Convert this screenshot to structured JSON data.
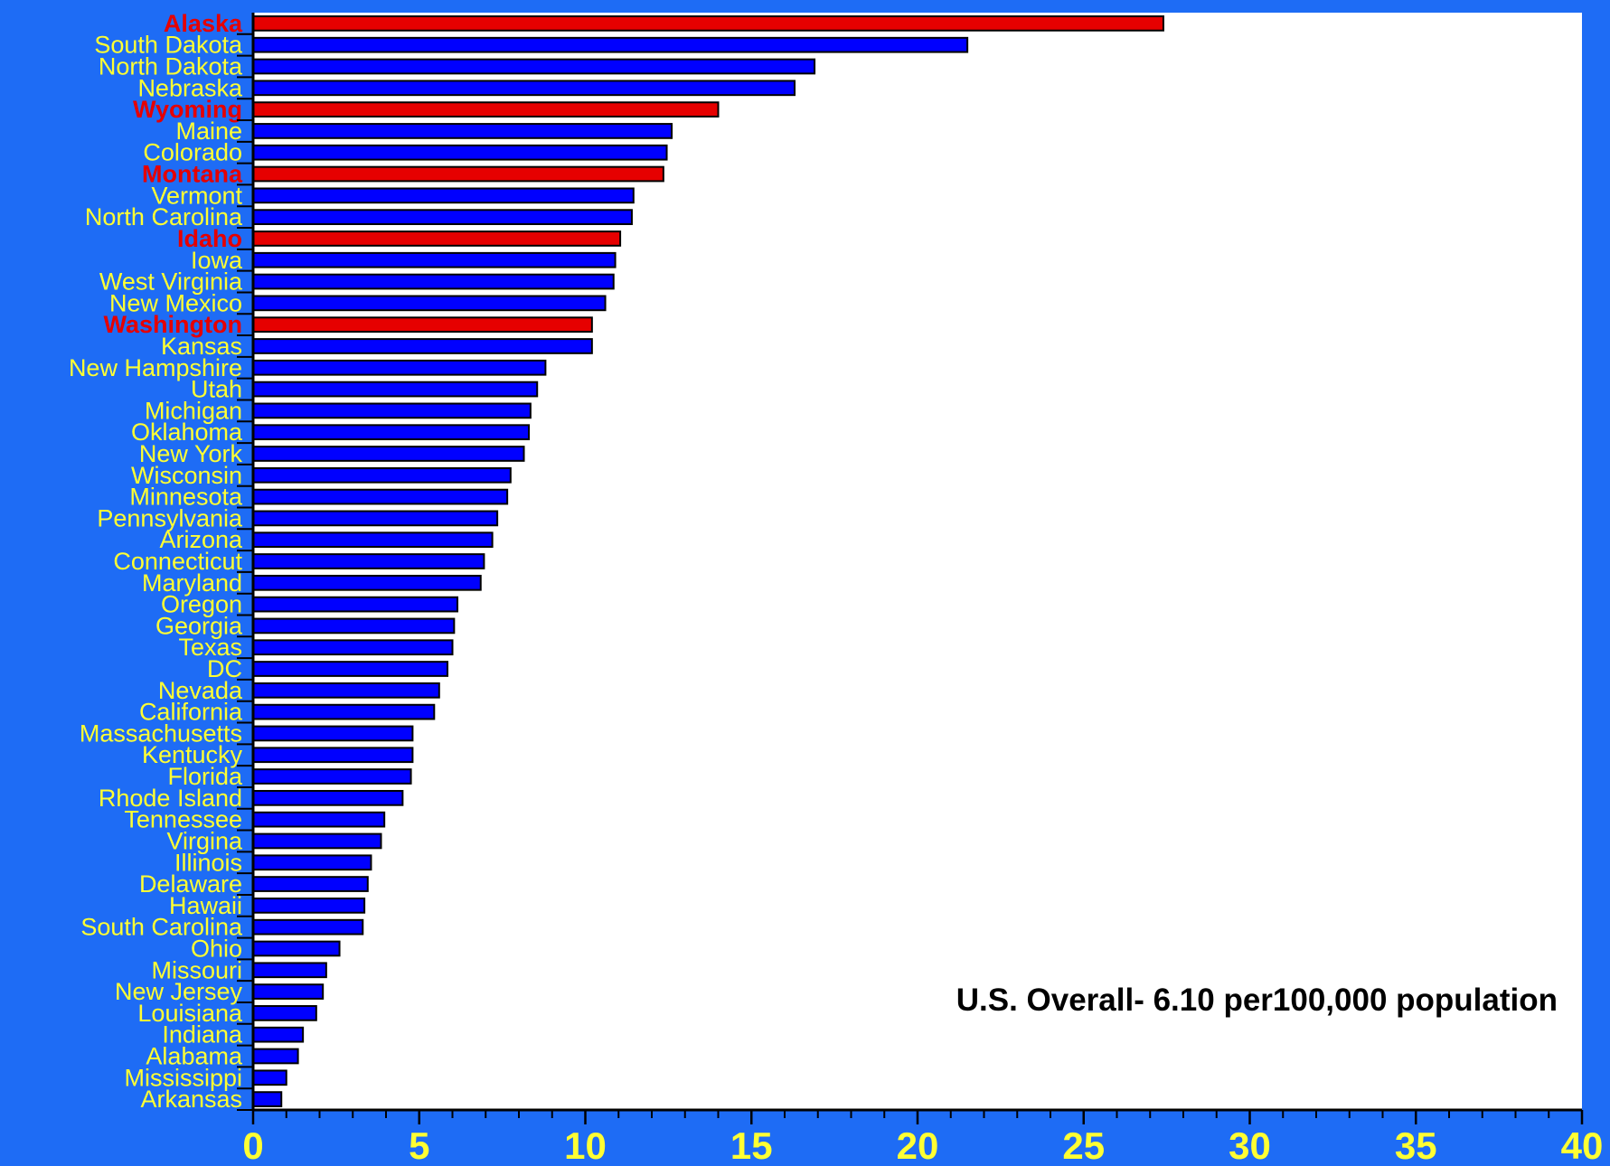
{
  "chart_data": {
    "type": "bar",
    "orientation": "horizontal",
    "title": "",
    "xlabel": "",
    "ylabel": "",
    "xlim": [
      0,
      40
    ],
    "x_major_ticks": [
      0,
      5,
      10,
      15,
      20,
      25,
      30,
      35,
      40
    ],
    "x_minor_step": 1,
    "grid": false,
    "annotation": "U.S. Overall- 6.10 per100,000 population",
    "colors": {
      "background": "#1e6cf5",
      "plot_area": "#ffffff",
      "bar": "#0000ff",
      "highlight_bar": "#e60000",
      "label": "#ffff33",
      "highlight_label": "#e60000",
      "annotation": "#000000",
      "axis": "#000000"
    },
    "categories": [
      "Alaska",
      "South Dakota",
      "North Dakota",
      "Nebraska",
      "Wyoming",
      "Maine",
      "Colorado",
      "Montana",
      "Vermont",
      "North Carolina",
      "Idaho",
      "Iowa",
      "West Virginia",
      "New Mexico",
      "Washington",
      "Kansas",
      "New Hampshire",
      "Utah",
      "Michigan",
      "Oklahoma",
      "New York",
      "Wisconsin",
      "Minnesota",
      "Pennsylvania",
      "Arizona",
      "Connecticut",
      "Maryland",
      "Oregon",
      "Georgia",
      "Texas",
      "DC",
      "Nevada",
      "California",
      "Massachusetts",
      "Kentucky",
      "Florida",
      "Rhode Island",
      "Tennessee",
      "Virgina",
      "Illinois",
      "Delaware",
      "Hawaii",
      "South Carolina",
      "Ohio",
      "Missouri",
      "New Jersey",
      "Louisiana",
      "Indiana",
      "Alabama",
      "Mississippi",
      "Arkansas"
    ],
    "values": [
      27.4,
      21.5,
      16.9,
      16.3,
      14.0,
      12.6,
      12.45,
      12.35,
      11.45,
      11.4,
      11.05,
      10.9,
      10.85,
      10.6,
      10.2,
      10.2,
      8.8,
      8.55,
      8.35,
      8.3,
      8.15,
      7.75,
      7.65,
      7.35,
      7.2,
      6.95,
      6.85,
      6.15,
      6.05,
      6.0,
      5.85,
      5.6,
      5.45,
      4.8,
      4.8,
      4.75,
      4.5,
      3.95,
      3.85,
      3.55,
      3.45,
      3.35,
      3.3,
      2.6,
      2.2,
      2.1,
      1.9,
      1.5,
      1.35,
      1.0,
      0.85
    ],
    "highlighted": [
      "Alaska",
      "Wyoming",
      "Montana",
      "Idaho",
      "Washington"
    ]
  }
}
